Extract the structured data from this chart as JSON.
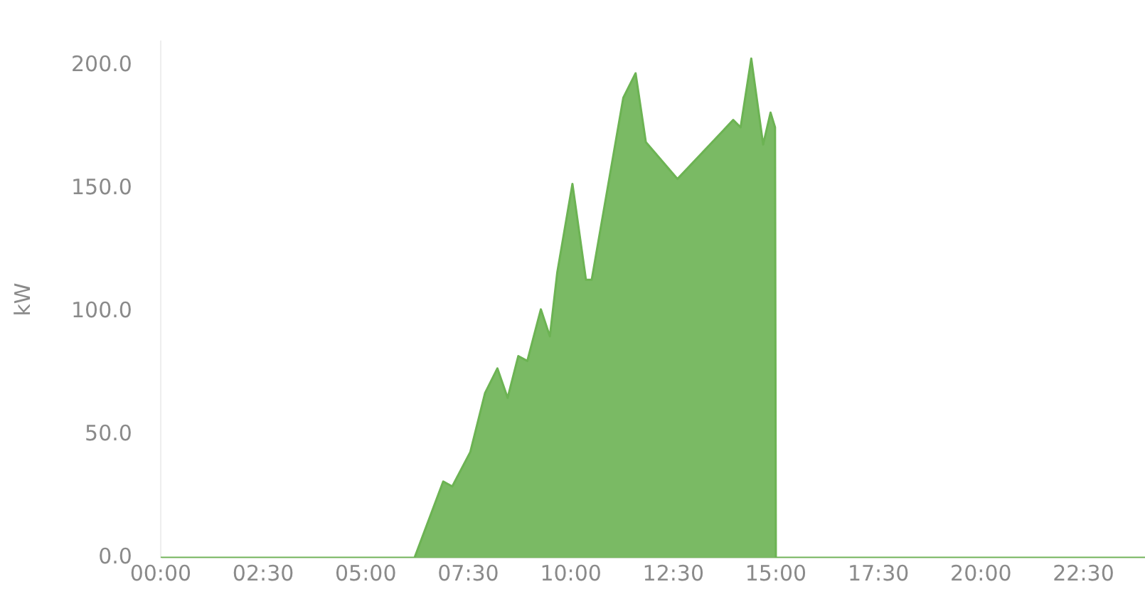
{
  "chart_data": {
    "type": "area",
    "ylabel": "kW",
    "x": [
      0,
      6.15,
      6.19,
      6.89,
      7.11,
      7.55,
      7.91,
      8.21,
      8.46,
      8.72,
      8.94,
      9.27,
      9.49,
      9.67,
      10.04,
      10.37,
      10.51,
      10.66,
      11.28,
      11.58,
      11.83,
      12.2,
      12.42,
      12.6,
      12.78,
      13.66,
      13.96,
      14.14,
      14.4,
      14.69,
      14.87,
      14.98,
      15.0,
      24
    ],
    "series": [
      {
        "color": "#6cb353",
        "values": [
          0,
          0,
          0,
          31,
          29,
          43,
          67,
          77,
          65,
          82,
          80,
          101,
          90,
          116,
          152,
          113,
          113,
          null,
          187,
          197,
          169,
          null,
          null,
          154,
          null,
          null,
          178,
          175,
          203,
          168,
          181,
          175,
          0,
          0
        ]
      }
    ],
    "xlim": [
      0,
      24
    ],
    "xticks": [
      {
        "value": 0,
        "label": "00:00"
      },
      {
        "value": 2.5,
        "label": "02:30"
      },
      {
        "value": 5,
        "label": "05:00"
      },
      {
        "value": 7.5,
        "label": "07:30"
      },
      {
        "value": 10,
        "label": "10:00"
      },
      {
        "value": 12.5,
        "label": "12:30"
      },
      {
        "value": 15,
        "label": "15:00"
      },
      {
        "value": 17.5,
        "label": "17:30"
      },
      {
        "value": 20,
        "label": "20:00"
      },
      {
        "value": 22.5,
        "label": "22:30"
      }
    ],
    "ylim": [
      0,
      210
    ],
    "yticks": [
      {
        "value": 0,
        "label": "0.0"
      },
      {
        "value": 50,
        "label": "50.0"
      },
      {
        "value": 100,
        "label": "100.0"
      },
      {
        "value": 150,
        "label": "150.0"
      },
      {
        "value": 200,
        "label": "200.0"
      }
    ],
    "grid": false,
    "legend": false,
    "marker": "none"
  }
}
